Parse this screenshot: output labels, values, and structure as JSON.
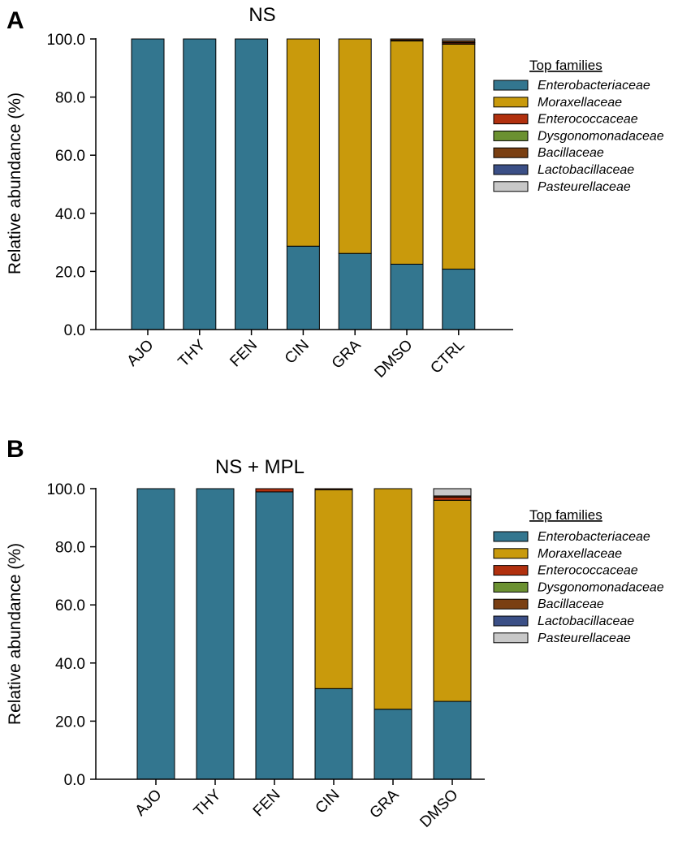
{
  "colors": {
    "Enterobacteriaceae": "#33768f",
    "Moraxellaceae": "#c99a0c",
    "Enterococcaceae": "#b1300e",
    "Dysgonomonadaceae": "#6b9131",
    "Bacillaceae": "#7a3f12",
    "Lactobacillaceae": "#3b4f86",
    "Pasteurellaceae": "#c8c8c8"
  },
  "chart_data": [
    {
      "type": "bar",
      "stacked": true,
      "panel": "A",
      "title": "NS",
      "ylabel": "Relative abundance (%)",
      "xlabel": "",
      "ylim": [
        0,
        100
      ],
      "yticks": [
        "0.0",
        "20.0",
        "40.0",
        "60.0",
        "80.0",
        "100.0"
      ],
      "categories": [
        "AJO",
        "THY",
        "FEN",
        "CIN",
        "GRA",
        "DMSO",
        "CTRL"
      ],
      "legend_title": "Top families",
      "legend_position": "right",
      "series": [
        {
          "name": "Enterobacteriaceae",
          "values": [
            100.0,
            100.0,
            100.0,
            28.7,
            26.2,
            22.5,
            20.8
          ]
        },
        {
          "name": "Moraxellaceae",
          "values": [
            0,
            0,
            0,
            71.3,
            73.8,
            76.8,
            77.4
          ]
        },
        {
          "name": "Enterococcaceae",
          "values": [
            0,
            0,
            0,
            0,
            0,
            0.2,
            0.4
          ]
        },
        {
          "name": "Dysgonomonadaceae",
          "values": [
            0,
            0,
            0,
            0,
            0,
            0,
            0.2
          ]
        },
        {
          "name": "Bacillaceae",
          "values": [
            0,
            0,
            0,
            0,
            0,
            0.5,
            0.6
          ]
        },
        {
          "name": "Lactobacillaceae",
          "values": [
            0,
            0,
            0,
            0,
            0,
            0,
            0
          ]
        },
        {
          "name": "Pasteurellaceae",
          "values": [
            0,
            0,
            0,
            0,
            0,
            0,
            0.6
          ]
        }
      ]
    },
    {
      "type": "bar",
      "stacked": true,
      "panel": "B",
      "title": "NS + MPL",
      "ylabel": "Relative abundance (%)",
      "xlabel": "",
      "ylim": [
        0,
        100
      ],
      "yticks": [
        "0.0",
        "20.0",
        "40.0",
        "60.0",
        "80.0",
        "100.0"
      ],
      "categories": [
        "AJO",
        "THY",
        "FEN",
        "CIN",
        "GRA",
        "DMSO"
      ],
      "legend_title": "Top families",
      "legend_position": "right",
      "series": [
        {
          "name": "Enterobacteriaceae",
          "values": [
            100.0,
            100.0,
            98.9,
            31.2,
            24.1,
            26.8
          ]
        },
        {
          "name": "Moraxellaceae",
          "values": [
            0,
            0,
            0,
            68.4,
            75.9,
            69.2
          ]
        },
        {
          "name": "Enterococcaceae",
          "values": [
            0,
            0,
            1.1,
            0,
            0,
            1.1
          ]
        },
        {
          "name": "Dysgonomonadaceae",
          "values": [
            0,
            0,
            0,
            0,
            0,
            0
          ]
        },
        {
          "name": "Bacillaceae",
          "values": [
            0,
            0,
            0,
            0.4,
            0,
            0.4
          ]
        },
        {
          "name": "Lactobacillaceae",
          "values": [
            0,
            0,
            0,
            0,
            0,
            0
          ]
        },
        {
          "name": "Pasteurellaceae",
          "values": [
            0,
            0,
            0,
            0,
            0,
            2.5
          ]
        }
      ]
    }
  ]
}
